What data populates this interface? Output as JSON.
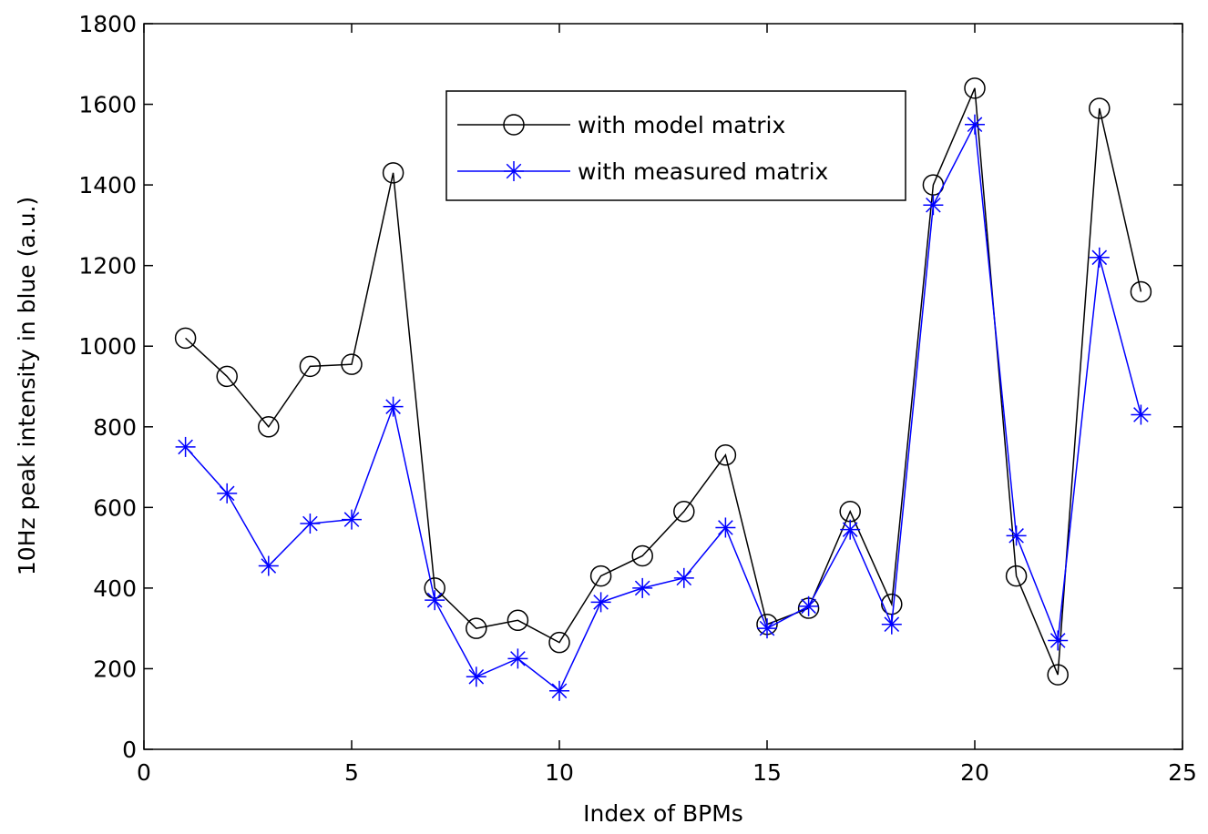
{
  "chart_data": {
    "type": "line",
    "title": "",
    "xlabel": "Index of BPMs",
    "ylabel": "10Hz peak intensity in blue (a.u.)",
    "xlim": [
      0,
      25
    ],
    "ylim": [
      0,
      1800
    ],
    "xticks": [
      0,
      5,
      10,
      15,
      20,
      25
    ],
    "yticks": [
      0,
      200,
      400,
      600,
      800,
      1000,
      1200,
      1400,
      1600,
      1800
    ],
    "grid": false,
    "legend_position": "top-center",
    "series": [
      {
        "name": "with model matrix",
        "color": "#000000",
        "marker": "circle",
        "x": [
          1,
          2,
          3,
          4,
          5,
          6,
          7,
          8,
          9,
          10,
          11,
          12,
          13,
          14,
          15,
          16,
          17,
          18,
          19,
          20,
          21,
          22,
          23,
          24
        ],
        "values": [
          1020,
          925,
          800,
          950,
          955,
          1430,
          400,
          300,
          320,
          265,
          430,
          480,
          590,
          730,
          310,
          350,
          590,
          360,
          1400,
          1640,
          430,
          185,
          1590,
          1135
        ]
      },
      {
        "name": "with measured matrix",
        "color": "#0000ff",
        "marker": "star",
        "x": [
          1,
          2,
          3,
          4,
          5,
          6,
          7,
          8,
          9,
          10,
          11,
          12,
          13,
          14,
          15,
          16,
          17,
          18,
          19,
          20,
          21,
          22,
          23,
          24
        ],
        "values": [
          750,
          635,
          455,
          560,
          570,
          850,
          370,
          180,
          225,
          145,
          365,
          400,
          425,
          550,
          300,
          355,
          545,
          310,
          1350,
          1550,
          530,
          270,
          1220,
          830
        ]
      }
    ]
  }
}
